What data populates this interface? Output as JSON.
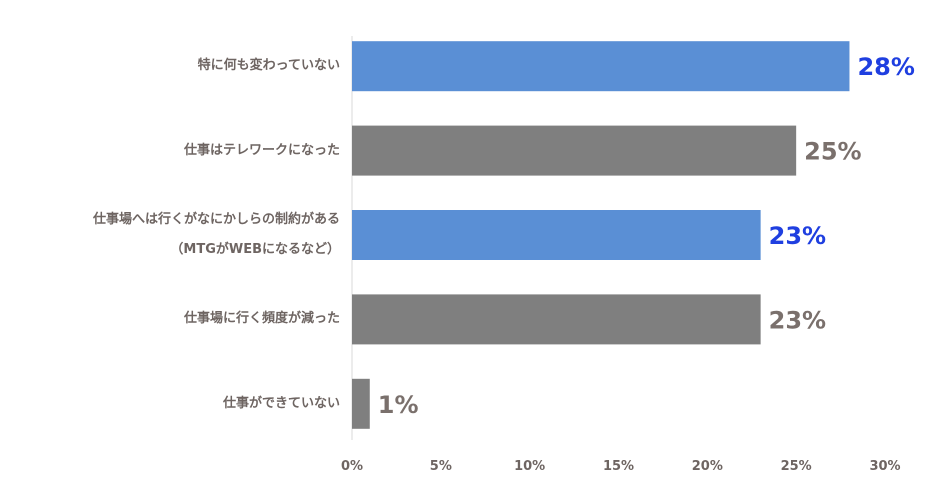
{
  "chart_data": {
    "type": "bar",
    "orientation": "horizontal",
    "categories": [
      "特に何も変わっていない",
      "仕事はテレワークになった",
      "仕事場へは行くがなにかしらの制約がある\n（MTGがWEBになるなど）",
      "仕事場に行く頻度が減った",
      "仕事ができていない"
    ],
    "values": [
      28,
      25,
      23,
      23,
      1
    ],
    "value_labels": [
      "28%",
      "25%",
      "23%",
      "23%",
      "1%"
    ],
    "colors": [
      "#5a8fd5",
      "#7f7f7f",
      "#5a8fd5",
      "#7f7f7f",
      "#7f7f7f"
    ],
    "label_colors": [
      "#1f3fe0",
      "#7a706c",
      "#1f3fe0",
      "#7a706c",
      "#7a706c"
    ],
    "xlim": [
      0,
      30
    ],
    "xticks": [
      {
        "value": 0,
        "label": "0%"
      },
      {
        "value": 5,
        "label": "5%"
      },
      {
        "value": 10,
        "label": "10%"
      },
      {
        "value": 15,
        "label": "15%"
      },
      {
        "value": 20,
        "label": "20%"
      },
      {
        "value": 25,
        "label": "25%"
      },
      {
        "value": 30,
        "label": "30%"
      }
    ]
  }
}
